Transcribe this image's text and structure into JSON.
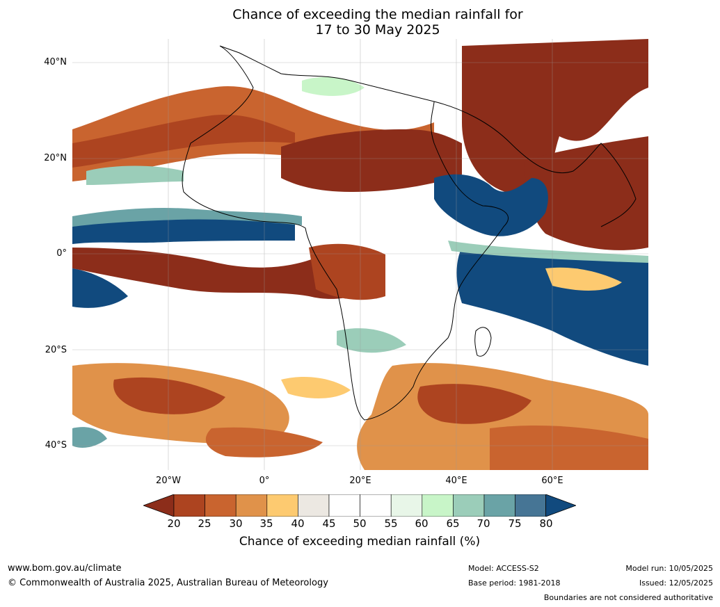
{
  "title": {
    "line1": "Chance of exceeding the median rainfall for",
    "line2": "17 to 30 May 2025"
  },
  "map": {
    "region": "Africa",
    "lat_labels": [
      "40°N",
      "20°N",
      "0°",
      "20°S",
      "40°S"
    ],
    "lon_labels": [
      "20°W",
      "0°",
      "20°E",
      "40°E",
      "60°E"
    ],
    "colors": {
      "c20": "#8c2d1a",
      "c25": "#ad4420",
      "c30": "#c9642f",
      "c35": "#e0924a",
      "c40": "#fdca70",
      "c45": "#ece8e2",
      "c50": "#ffffff",
      "c55": "#ffffff",
      "c60": "#e8f6e8",
      "c65": "#c8f5c8",
      "c70": "#9bcdb9",
      "c75": "#6aa3a6",
      "c80": "#467595",
      "c85": "#114a7e"
    }
  },
  "colorbar": {
    "ticks": [
      "20",
      "25",
      "30",
      "35",
      "40",
      "45",
      "50",
      "55",
      "60",
      "65",
      "70",
      "75",
      "80"
    ],
    "label": "Chance of exceeding median rainfall (%)"
  },
  "footer": {
    "website": "www.bom.gov.au/climate",
    "copyright": "© Commonwealth of Australia 2025, Australian Bureau of Meteorology",
    "model": "Model: ACCESS-S2",
    "base_period": "Base period: 1981-2018",
    "model_run": "Model run: 10/05/2025",
    "issued": "Issued: 12/05/2025",
    "boundaries": "Boundaries are not considered authoritative"
  }
}
